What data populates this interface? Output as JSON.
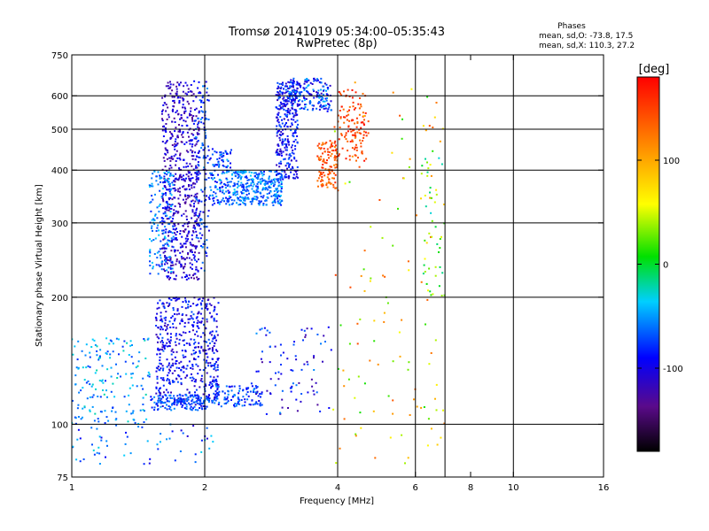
{
  "chart_data": {
    "type": "scatter",
    "title": "Tromsø 20141019 05:34:00–05:35:43",
    "subtitle": "RwPretec (8p)",
    "xlabel": "Frequency [MHz]",
    "ylabel": "Stationary phase Virtual Height [km]",
    "x_scale": "log",
    "y_scale": "log",
    "xlim": [
      1,
      16
    ],
    "ylim": [
      75,
      750
    ],
    "grid": true,
    "x_ticks": [
      1,
      2,
      4,
      6,
      8,
      10,
      16
    ],
    "x_tick_labels": [
      "1",
      "2",
      "4",
      "6",
      "8",
      "10",
      "16"
    ],
    "x_gridlines": [
      2,
      4,
      6,
      7,
      10
    ],
    "y_ticks": [
      75,
      100,
      200,
      300,
      400,
      500,
      600,
      750
    ],
    "y_tick_labels": [
      "75",
      "100",
      "200",
      "300",
      "400",
      "500",
      "600",
      "750"
    ],
    "y_gridlines": [
      100,
      200,
      300,
      400,
      500,
      600
    ],
    "stats": {
      "header": "Phases",
      "o_line": "mean, sd,O: -73.8, 17.5",
      "x_line": "mean, sd,X: 110.3, 27.2"
    },
    "colorbar": {
      "label": "[deg]",
      "range": [
        -180,
        180
      ],
      "ticks": [
        100,
        0,
        -100
      ],
      "tick_labels": [
        "100",
        "0",
        "-100"
      ]
    },
    "clusters": [
      {
        "x": [
          1.6,
          1.95
        ],
        "y": [
          220,
          650
        ],
        "phase": -110,
        "spread": 25,
        "density": 650
      },
      {
        "x": [
          1.5,
          1.7
        ],
        "y": [
          225,
          400
        ],
        "phase": -60,
        "spread": 25,
        "density": 160
      },
      {
        "x": [
          1.9,
          2.05
        ],
        "y": [
          230,
          650
        ],
        "phase": -80,
        "spread": 30,
        "density": 140
      },
      {
        "x": [
          2.05,
          2.3
        ],
        "y": [
          330,
          450
        ],
        "phase": -70,
        "spread": 30,
        "density": 140
      },
      {
        "x": [
          2.3,
          3.0
        ],
        "y": [
          330,
          400
        ],
        "phase": -60,
        "spread": 25,
        "density": 320
      },
      {
        "x": [
          2.9,
          3.25
        ],
        "y": [
          380,
          650
        ],
        "phase": -90,
        "spread": 30,
        "density": 300
      },
      {
        "x": [
          3.1,
          3.9
        ],
        "y": [
          550,
          660
        ],
        "phase": -80,
        "spread": 40,
        "density": 180
      },
      {
        "x": [
          3.6,
          4.0
        ],
        "y": [
          360,
          470
        ],
        "phase": 140,
        "spread": 25,
        "density": 120
      },
      {
        "x": [
          4.0,
          4.7
        ],
        "y": [
          420,
          620
        ],
        "phase": 150,
        "spread": 25,
        "density": 120
      },
      {
        "x": [
          1.55,
          2.15
        ],
        "y": [
          110,
          200
        ],
        "phase": -95,
        "spread": 30,
        "density": 520
      },
      {
        "x": [
          1.0,
          1.5
        ],
        "y": [
          100,
          160
        ],
        "phase": -50,
        "spread": 30,
        "density": 170
      },
      {
        "x": [
          1.5,
          2.05
        ],
        "y": [
          108,
          118
        ],
        "phase": -70,
        "spread": 20,
        "density": 140
      },
      {
        "x": [
          2.05,
          2.7
        ],
        "y": [
          110,
          125
        ],
        "phase": -75,
        "spread": 25,
        "density": 110
      },
      {
        "x": [
          2.6,
          3.9
        ],
        "y": [
          105,
          170
        ],
        "phase": -90,
        "spread": 40,
        "density": 90
      },
      {
        "x": [
          1.0,
          2.1
        ],
        "y": [
          80,
          100
        ],
        "phase": -70,
        "spread": 40,
        "density": 60
      },
      {
        "x": [
          3.9,
          7.0
        ],
        "y": [
          80,
          650
        ],
        "phase": 80,
        "spread": 70,
        "density": 130
      },
      {
        "x": [
          6.2,
          7.0
        ],
        "y": [
          200,
          450
        ],
        "phase": 20,
        "spread": 50,
        "density": 40
      }
    ]
  }
}
